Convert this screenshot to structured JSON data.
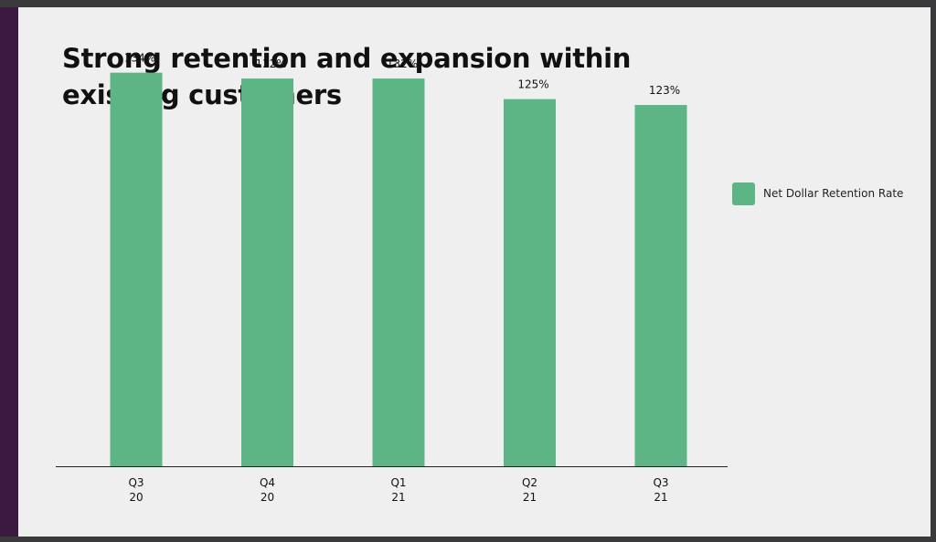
{
  "slide": {
    "title_lines": [
      "Strong retention and expansion within",
      "existing customers"
    ]
  },
  "colors": {
    "bar": "#5bb584",
    "accent": "#3b1a3f",
    "axis": "#222222",
    "text": "#111111"
  },
  "chart_data": {
    "type": "bar",
    "categories": [
      [
        "Q3",
        "20"
      ],
      [
        "Q4",
        "20"
      ],
      [
        "Q1",
        "21"
      ],
      [
        "Q2",
        "21"
      ],
      [
        "Q3",
        "21"
      ]
    ],
    "series": [
      {
        "name": "Net Dollar Retention Rate",
        "values": [
          134,
          132,
          132,
          125,
          123
        ]
      }
    ],
    "data_labels": [
      "134%",
      "132%",
      "132%",
      "125%",
      "123%"
    ],
    "unit": "%",
    "ylim": [
      0,
      137
    ],
    "grid": false,
    "legend": "right"
  }
}
